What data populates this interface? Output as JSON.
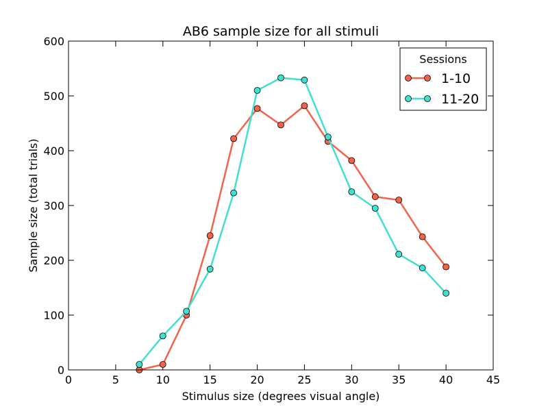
{
  "chart_data": {
    "type": "line",
    "title": "AB6 sample size for all stimuli",
    "xlabel": "Stimulus size (degrees visual angle)",
    "ylabel": "Sample size (total trials)",
    "xlim": [
      0,
      45
    ],
    "ylim": [
      0,
      600
    ],
    "xticks": [
      "0",
      "5",
      "10",
      "15",
      "20",
      "25",
      "30",
      "35",
      "40",
      "45"
    ],
    "yticks": [
      "0",
      "100",
      "200",
      "300",
      "400",
      "500",
      "600"
    ],
    "grid": false,
    "legend": {
      "title": "Sessions",
      "placement": "top-right"
    },
    "series": [
      {
        "name": "1-10",
        "color": "#f2634a",
        "x": [
          7.5,
          10,
          12.5,
          15,
          17.5,
          20,
          22.5,
          25,
          27.5,
          30,
          32.5,
          35,
          37.5,
          40
        ],
        "y": [
          0,
          10,
          100,
          245,
          422,
          477,
          447,
          482,
          417,
          382,
          316,
          310,
          243,
          188
        ]
      },
      {
        "name": "11-20",
        "color": "#40e0d0",
        "x": [
          7.5,
          10,
          12.5,
          15,
          17.5,
          20,
          22.5,
          25,
          27.5,
          30,
          32.5,
          35,
          37.5,
          40
        ],
        "y": [
          10,
          62,
          107,
          184,
          323,
          510,
          533,
          529,
          425,
          325,
          295,
          211,
          186,
          140
        ]
      }
    ]
  }
}
